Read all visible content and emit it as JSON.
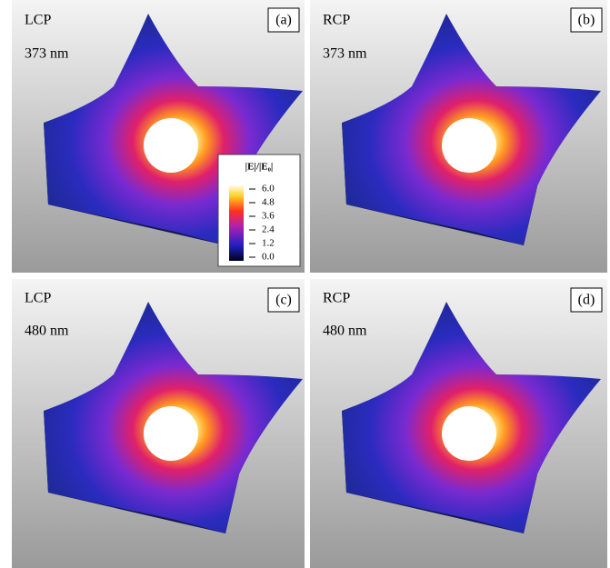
{
  "panels": [
    {
      "label": "(a)",
      "polarization": "LCP",
      "wavelength": "373 nm"
    },
    {
      "label": "(b)",
      "polarization": "RCP",
      "wavelength": "373 nm"
    },
    {
      "label": "(c)",
      "polarization": "LCP",
      "wavelength": "480 nm"
    },
    {
      "label": "(d)",
      "polarization": "RCP",
      "wavelength": "480 nm"
    }
  ],
  "colorbar": {
    "title": "|E|/|E₀|",
    "ticks": [
      {
        "value": 6,
        "label": "6.0"
      },
      {
        "value": 4.8,
        "label": "4.8"
      },
      {
        "value": 3.6,
        "label": "3.6"
      },
      {
        "value": 2.4,
        "label": "2.4"
      },
      {
        "value": 1.2,
        "label": "1.2"
      },
      {
        "value": 0,
        "label": "0.0"
      }
    ]
  }
}
